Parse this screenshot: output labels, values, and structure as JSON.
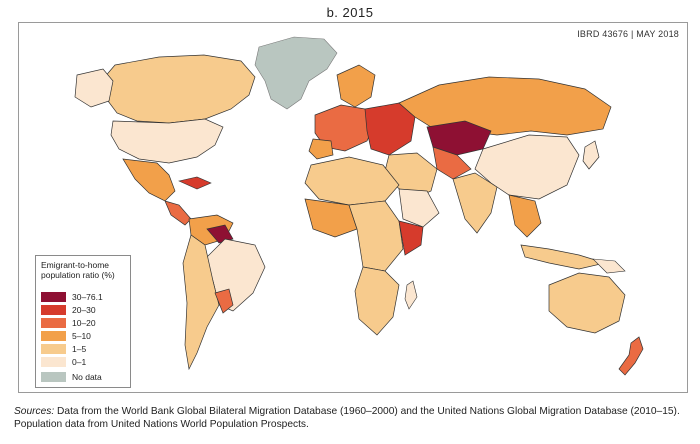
{
  "map": {
    "title": "b. 2015",
    "credit": "IBRD 43676 | MAY 2018",
    "legend": {
      "title": "Emigrant-to-home population ratio (%)",
      "items": [
        {
          "label": "30–76.1",
          "color": "#8e1033"
        },
        {
          "label": "20–30",
          "color": "#d63b2c"
        },
        {
          "label": "10–20",
          "color": "#ea6b43"
        },
        {
          "label": "5–10",
          "color": "#f2a04a"
        },
        {
          "label": "1–5",
          "color": "#f7cb8d"
        },
        {
          "label": "0–1",
          "color": "#fbe6d0"
        },
        {
          "label": "No data",
          "color": "#b9c6c0"
        }
      ]
    }
  },
  "footer": {
    "sources_prefix": "Sources:",
    "sources_text": "Data from the World Bank Global Bilateral Migration Database (1960–2000) and the United Nations Global Migration Database (2010–15). Population data from United Nations World Population Prospects."
  }
}
